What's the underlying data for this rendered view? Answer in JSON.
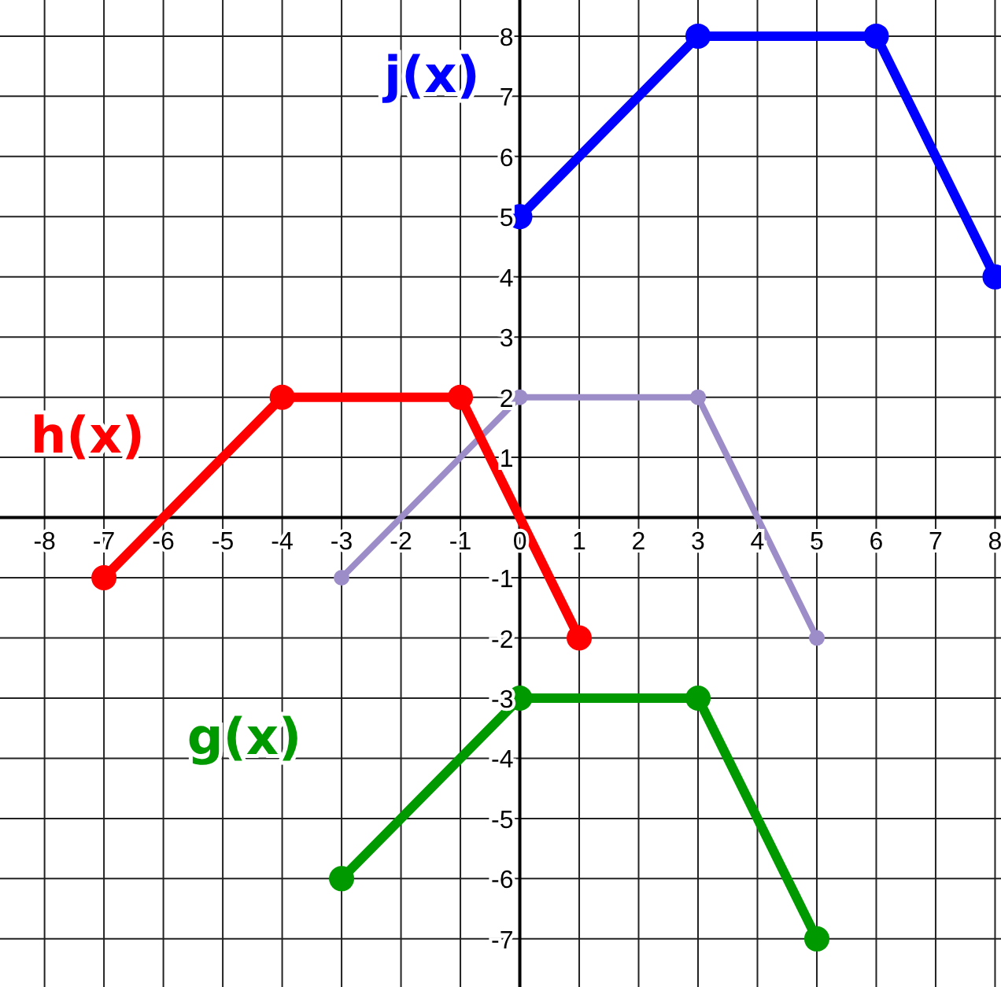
{
  "chart_data": {
    "type": "line",
    "xlim": [
      -8.75,
      8.1
    ],
    "ylim": [
      -7.8,
      8.6
    ],
    "xticks": [
      -8,
      -7,
      -6,
      -5,
      -4,
      -3,
      -2,
      -1,
      0,
      1,
      2,
      3,
      4,
      5,
      6,
      7,
      8
    ],
    "yticks": [
      -7,
      -6,
      -5,
      -4,
      -3,
      -2,
      -1,
      {
        "value": 0,
        "label": null
      },
      1,
      2,
      3,
      4,
      5,
      6,
      7,
      8
    ],
    "grid": true,
    "marker": "circle",
    "line_style": "solid",
    "series": [
      {
        "color": "#9c8cc8",
        "x": [
          -3,
          0,
          3,
          5
        ],
        "values": [
          -1,
          2,
          2,
          -2
        ]
      },
      {
        "name": "h(x)",
        "color": "#ff0000",
        "x": [
          -7,
          -4,
          -1,
          1
        ],
        "values": [
          -1,
          2,
          2,
          -2
        ]
      },
      {
        "name": "j(x)",
        "color": "#0000ff",
        "x": [
          0,
          3,
          6,
          8
        ],
        "values": [
          5,
          8,
          8,
          4
        ]
      },
      {
        "name": "g(x)",
        "color": "#009900",
        "x": [
          -3,
          0,
          3,
          5
        ],
        "values": [
          -6,
          -3,
          -3,
          -7
        ]
      }
    ]
  }
}
